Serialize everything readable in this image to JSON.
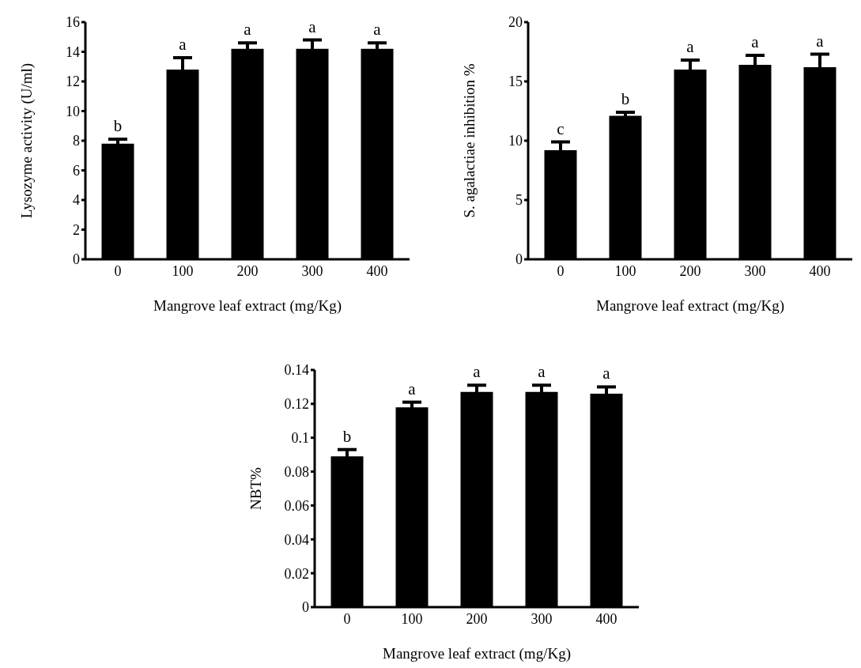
{
  "chart_data": [
    {
      "type": "bar",
      "categories": [
        "0",
        "100",
        "200",
        "300",
        "400"
      ],
      "values": [
        7.8,
        12.8,
        14.2,
        14.2,
        14.2
      ],
      "errors": [
        0.3,
        0.8,
        0.4,
        0.6,
        0.4
      ],
      "color": "#000000",
      "xlabel": "Mangrove leaf extract (mg/Kg)",
      "ylabel": "Lysozyme activity (U/ml)",
      "ylim": [
        0,
        16
      ],
      "yticks": [
        0,
        2,
        4,
        6,
        8,
        10,
        12,
        14,
        16
      ],
      "grid": false,
      "annotations": [
        {
          "text": "b",
          "x": "0",
          "y": 8.1
        },
        {
          "text": "a",
          "x": "100",
          "y": 13.6
        },
        {
          "text": "a",
          "x": "200",
          "y": 14.6
        },
        {
          "text": "a",
          "x": "300",
          "y": 14.8
        },
        {
          "text": "a",
          "x": "400",
          "y": 14.6
        }
      ]
    },
    {
      "type": "bar",
      "categories": [
        "0",
        "100",
        "200",
        "300",
        "400"
      ],
      "values": [
        9.2,
        12.1,
        16.0,
        16.4,
        16.2
      ],
      "errors": [
        0.7,
        0.3,
        0.8,
        0.8,
        1.1
      ],
      "color": "#000000",
      "xlabel": "Mangrove leaf extract (mg/Kg)",
      "ylabel": "S. agalactiae  inhibition %",
      "ylim": [
        0,
        20
      ],
      "yticks": [
        0,
        5,
        10,
        15,
        20
      ],
      "grid": false,
      "annotations": [
        {
          "text": "c",
          "x": "0",
          "y": 9.9
        },
        {
          "text": "b",
          "x": "100",
          "y": 12.4
        },
        {
          "text": "a",
          "x": "200",
          "y": 16.8
        },
        {
          "text": "a",
          "x": "300",
          "y": 17.2
        },
        {
          "text": "a",
          "x": "400",
          "y": 17.3
        }
      ]
    },
    {
      "type": "bar",
      "categories": [
        "0",
        "100",
        "200",
        "300",
        "400"
      ],
      "values": [
        0.089,
        0.118,
        0.127,
        0.127,
        0.126
      ],
      "errors": [
        0.004,
        0.003,
        0.004,
        0.004,
        0.004
      ],
      "color": "#000000",
      "xlabel": "Mangrove leaf extract (mg/Kg)",
      "ylabel": "NBT%",
      "ylim": [
        0,
        0.14
      ],
      "yticks": [
        0,
        0.02,
        0.04,
        0.06,
        0.08,
        0.1,
        0.12,
        0.14
      ],
      "grid": false,
      "annotations": [
        {
          "text": "b",
          "x": "0",
          "y": 0.093
        },
        {
          "text": "a",
          "x": "100",
          "y": 0.121
        },
        {
          "text": "a",
          "x": "200",
          "y": 0.131
        },
        {
          "text": "a",
          "x": "300",
          "y": 0.131
        },
        {
          "text": "a",
          "x": "400",
          "y": 0.13
        }
      ]
    }
  ]
}
